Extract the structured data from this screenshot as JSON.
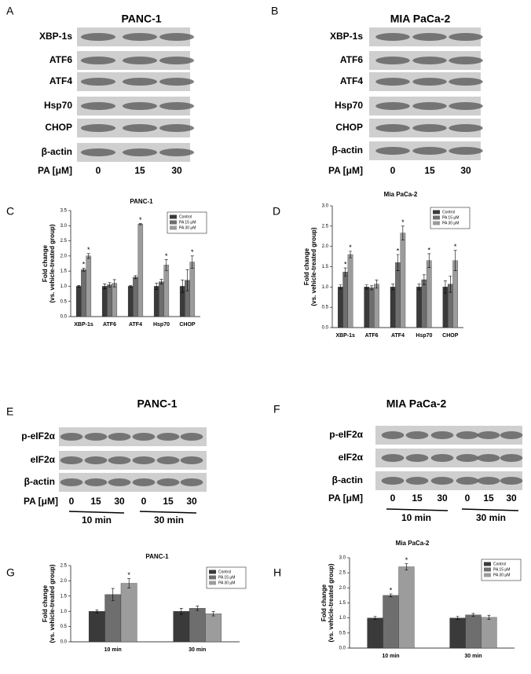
{
  "panels": [
    "A",
    "B",
    "C",
    "D",
    "E",
    "F",
    "G",
    "H"
  ],
  "blots": [
    {
      "title": "PANC-1",
      "rows": [
        "XBP-1s",
        "ATF6",
        "ATF4",
        "Hsp70",
        "CHOP",
        "β-actin"
      ],
      "lane_label": "PA [μM]",
      "lanes": [
        "0",
        "15",
        "30"
      ]
    },
    {
      "title": "MIA PaCa-2",
      "rows": [
        "XBP-1s",
        "ATF6",
        "ATF4",
        "Hsp70",
        "CHOP",
        "β-actin"
      ],
      "lane_label": "PA [μM]",
      "lanes": [
        "0",
        "15",
        "30"
      ]
    },
    {
      "title": "PANC-1",
      "rows": [
        "p-eIF2α",
        "eIF2α",
        "β-actin"
      ],
      "lane_label": "PA [μM]",
      "lanes": [
        "0",
        "15",
        "30",
        "0",
        "15",
        "30"
      ],
      "groups": [
        "10 min",
        "30 min"
      ]
    },
    {
      "title": "MIA PaCa-2",
      "rows": [
        "p-eIF2α",
        "eIF2α",
        "β-actin"
      ],
      "lane_label": "PA [μM]",
      "lanes": [
        "0",
        "15",
        "30",
        "0",
        "15",
        "30"
      ],
      "groups": [
        "10 min",
        "30 min"
      ]
    }
  ],
  "chart_data": [
    {
      "type": "bar",
      "title": "PANC-1",
      "ylabel": [
        "Fold change",
        "(vs. vehicle-treated group)"
      ],
      "categories": [
        "XBP-1s",
        "ATF6",
        "ATF4",
        "Hsp70",
        "CHOP"
      ],
      "series": [
        {
          "name": "Control",
          "color": "#3a3a3a",
          "values": [
            1,
            1,
            1,
            1,
            1
          ],
          "errors": [
            0.03,
            0.08,
            0.02,
            0.1,
            0.2
          ],
          "markers": [
            null,
            null,
            null,
            null,
            null
          ]
        },
        {
          "name": "PA 15 μM",
          "color": "#6e6e6e",
          "values": [
            1.55,
            1.05,
            1.3,
            1.15,
            1.2
          ],
          "errors": [
            0.05,
            0.07,
            0.05,
            0.08,
            0.35
          ],
          "markers": [
            "*",
            null,
            null,
            null,
            null
          ]
        },
        {
          "name": "PA 30 μM",
          "color": "#9c9c9c",
          "values": [
            2.0,
            1.1,
            3.05,
            1.7,
            1.8
          ],
          "errors": [
            0.08,
            0.12,
            0.02,
            0.18,
            0.2
          ],
          "markers": [
            "*",
            null,
            "*",
            "*",
            "*"
          ]
        }
      ],
      "ylim": [
        0,
        3.5
      ],
      "yticks": [
        {
          "value": 0,
          "label": "0.0"
        },
        0.5,
        {
          "value": 1,
          "label": "1.0"
        },
        1.5,
        {
          "value": 2,
          "label": "2.0"
        },
        2.5,
        {
          "value": 3,
          "label": "3.0"
        },
        3.5
      ],
      "legend": "upper right"
    },
    {
      "type": "bar",
      "title": "Mia PaCa-2",
      "ylabel": [
        "Fold change",
        "(vs. vehicle-treated group)"
      ],
      "categories": [
        "XBP-1s",
        "ATF6",
        "ATF4",
        "Hsp70",
        "CHOP"
      ],
      "series": [
        {
          "name": "Control",
          "color": "#3a3a3a",
          "values": [
            1,
            1,
            1,
            1,
            1
          ],
          "errors": [
            0.05,
            0.05,
            0.07,
            0.07,
            0.15
          ],
          "markers": [
            null,
            null,
            null,
            null,
            null
          ]
        },
        {
          "name": "PA 15 μM",
          "color": "#6e6e6e",
          "values": [
            1.37,
            0.98,
            1.6,
            1.18,
            1.07
          ],
          "errors": [
            0.1,
            0.05,
            0.2,
            0.12,
            0.2
          ],
          "markers": [
            "*",
            null,
            "*",
            null,
            null
          ]
        },
        {
          "name": "PA 30 μM",
          "color": "#9c9c9c",
          "values": [
            1.8,
            1.07,
            2.33,
            1.65,
            1.65
          ],
          "errors": [
            0.08,
            0.1,
            0.17,
            0.17,
            0.25
          ],
          "markers": [
            "*",
            null,
            "*",
            "*",
            "*"
          ]
        }
      ],
      "ylim": [
        0,
        3.0
      ],
      "yticks": [
        {
          "value": 0,
          "label": "0.0"
        },
        0.5,
        {
          "value": 1,
          "label": "1.0"
        },
        1.5,
        {
          "value": 2,
          "label": "2.0"
        },
        2.5,
        {
          "value": 3,
          "label": "3.0"
        }
      ],
      "legend": "upper right"
    },
    {
      "type": "bar",
      "title": "PANC-1",
      "ylabel": [
        "Fold change",
        "(vs. vehicle-treated group)"
      ],
      "categories": [
        "10 min",
        "30 min"
      ],
      "series": [
        {
          "name": "Control",
          "color": "#3a3a3a",
          "values": [
            1.0,
            1.0
          ],
          "errors": [
            0.05,
            0.1
          ],
          "markers": [
            null,
            null
          ]
        },
        {
          "name": "PA 15 μM",
          "color": "#6e6e6e",
          "values": [
            1.55,
            1.1
          ],
          "errors": [
            0.2,
            0.07
          ],
          "markers": [
            null,
            null
          ]
        },
        {
          "name": "PA 30 μM",
          "color": "#9c9c9c",
          "values": [
            1.92,
            0.92
          ],
          "errors": [
            0.15,
            0.07
          ],
          "markers": [
            "*",
            null
          ]
        }
      ],
      "ylim": [
        0,
        2.5
      ],
      "yticks": [
        {
          "value": 0,
          "label": "0.0"
        },
        0.5,
        {
          "value": 1,
          "label": "1.0"
        },
        1.5,
        {
          "value": 2,
          "label": "2.0"
        },
        2.5
      ],
      "legend": "upper right"
    },
    {
      "type": "bar",
      "title": "Mia PaCa-2",
      "ylabel": [
        "Fold change",
        "(vs. vehicle-treated group)"
      ],
      "categories": [
        "10 min",
        "30 min"
      ],
      "series": [
        {
          "name": "Control",
          "color": "#3a3a3a",
          "values": [
            1.0,
            1.0
          ],
          "errors": [
            0.05,
            0.05
          ],
          "markers": [
            null,
            null
          ]
        },
        {
          "name": "PA 15 μM",
          "color": "#6e6e6e",
          "values": [
            1.75,
            1.1
          ],
          "errors": [
            0.05,
            0.05
          ],
          "markers": [
            "*",
            null
          ]
        },
        {
          "name": "PA 30 μM",
          "color": "#9c9c9c",
          "values": [
            2.7,
            1.02
          ],
          "errors": [
            0.1,
            0.07
          ],
          "markers": [
            "*",
            null
          ]
        }
      ],
      "ylim": [
        0,
        3.0
      ],
      "yticks": [
        {
          "value": 0,
          "label": "0.0"
        },
        0.5,
        {
          "value": 1,
          "label": "1.0"
        },
        1.5,
        {
          "value": 2,
          "label": "2.0"
        },
        2.5,
        {
          "value": 3,
          "label": "3.0"
        }
      ],
      "legend": "upper right"
    }
  ]
}
